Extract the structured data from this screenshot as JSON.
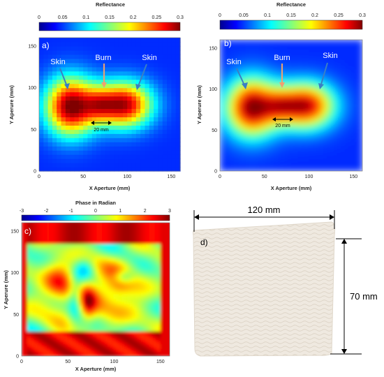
{
  "chart_data": [
    {
      "type": "heatmap",
      "panel_label": "a)",
      "colorbar": {
        "title": "Reflectance",
        "ticks": [
          "0",
          "0.05",
          "0.1",
          "0.15",
          "0.2",
          "0.25",
          "0.3"
        ],
        "range": [
          0,
          0.3
        ]
      },
      "xlabel": "X Aperture (mm)",
      "ylabel": "Y Aperure (mm)",
      "xticks": [
        "0",
        "50",
        "100",
        "150"
      ],
      "yticks": [
        "0",
        "50",
        "100",
        "150"
      ],
      "xlim": [
        0,
        160
      ],
      "ylim": [
        0,
        160
      ],
      "annotations": {
        "left": "Skin",
        "center": "Burn",
        "right": "Skin",
        "gap": "20 mm"
      },
      "style": "pixelated"
    },
    {
      "type": "heatmap",
      "panel_label": "b)",
      "colorbar": {
        "title": "Reflectance",
        "ticks": [
          "0",
          "0.05",
          "0.1",
          "0.15",
          "0.2",
          "0.25",
          "0.3"
        ],
        "range": [
          0,
          0.3
        ]
      },
      "xlabel": "X Aperture (mm)",
      "ylabel": "Y Aperure (mm)",
      "xticks": [
        "0",
        "50",
        "100",
        "150"
      ],
      "yticks": [
        "0",
        "50",
        "100",
        "150"
      ],
      "xlim": [
        0,
        160
      ],
      "ylim": [
        0,
        160
      ],
      "annotations": {
        "left": "Skin",
        "center": "Burn",
        "right": "Skin",
        "gap": "20 mm"
      },
      "style": "smooth"
    },
    {
      "type": "heatmap",
      "panel_label": "c)",
      "colorbar": {
        "title": "Phase in Radian",
        "ticks": [
          "-3",
          "-2",
          "-1",
          "0",
          "1",
          "2",
          "3"
        ],
        "range": [
          -3,
          3
        ]
      },
      "xlabel": "X Aperture (mm)",
      "ylabel": "Y Aperure (mm)",
      "xticks": [
        "0",
        "50",
        "100",
        "150"
      ],
      "yticks": [
        "0",
        "50",
        "100",
        "150"
      ],
      "xlim": [
        0,
        160
      ],
      "ylim": [
        0,
        160
      ],
      "style": "phase"
    }
  ],
  "photo": {
    "panel_label": "d)",
    "width_label": "120 mm",
    "height_label": "70 mm"
  },
  "colors": {
    "jet_low": "#00008f",
    "jet_high": "#800000",
    "arrow_blue": "#3a7fc4",
    "arrow_orange": "#f0a070",
    "gauze": "#efe9e0"
  }
}
